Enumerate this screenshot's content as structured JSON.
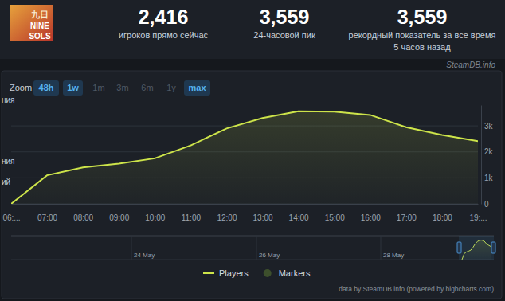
{
  "page": {
    "logo": [
      "九日",
      "NINE",
      "SOLS"
    ],
    "stats": [
      {
        "value": "2,416",
        "label": "игроков прямо сейчас"
      },
      {
        "value": "3,559",
        "label": "24-часовой пик"
      },
      {
        "value": "3,559",
        "label": "рекордный показатель за все время",
        "note": "5 часов назад"
      }
    ],
    "source": "SteamDB.info",
    "left_labels": [
      "ния",
      "ния",
      "ий"
    ],
    "zoom": {
      "label": "Zoom",
      "buttons": [
        "48h",
        "1w",
        "1m",
        "3m",
        "6m",
        "1y",
        "max"
      ],
      "active": [
        true,
        true,
        false,
        false,
        false,
        false,
        true
      ]
    },
    "navigator": {
      "labels": [
        "24 May",
        "26 May",
        "28 May"
      ]
    },
    "credit": "data by SteamDB.info (powered by highcharts.com)"
  },
  "chart_data": {
    "type": "line",
    "categories": [
      "06:...",
      "07:00",
      "08:00",
      "09:00",
      "10:00",
      "11:00",
      "12:00",
      "13:00",
      "14:00",
      "15:00",
      "16:00",
      "17:00",
      "18:00",
      "19:..."
    ],
    "series": [
      {
        "name": "Players",
        "color": "#cde44a",
        "line_style": "solid",
        "values": [
          0,
          1100,
          1400,
          1550,
          1750,
          2250,
          2900,
          3300,
          3559,
          3550,
          3420,
          2950,
          2650,
          2416
        ]
      },
      {
        "name": "Markers",
        "color": "#3d4f2c",
        "marker": "circle",
        "values": [
          null,
          null,
          null,
          null,
          null,
          null,
          null,
          null,
          null,
          null,
          null,
          null,
          null,
          null
        ]
      }
    ],
    "ylim": [
      0,
      3800
    ],
    "yticks": [
      0,
      {
        "value": 1000,
        "label": "1k"
      },
      {
        "value": 2000,
        "label": "2k"
      },
      {
        "value": 3000,
        "label": "3k"
      }
    ],
    "grid": true,
    "legend": "bottom"
  }
}
